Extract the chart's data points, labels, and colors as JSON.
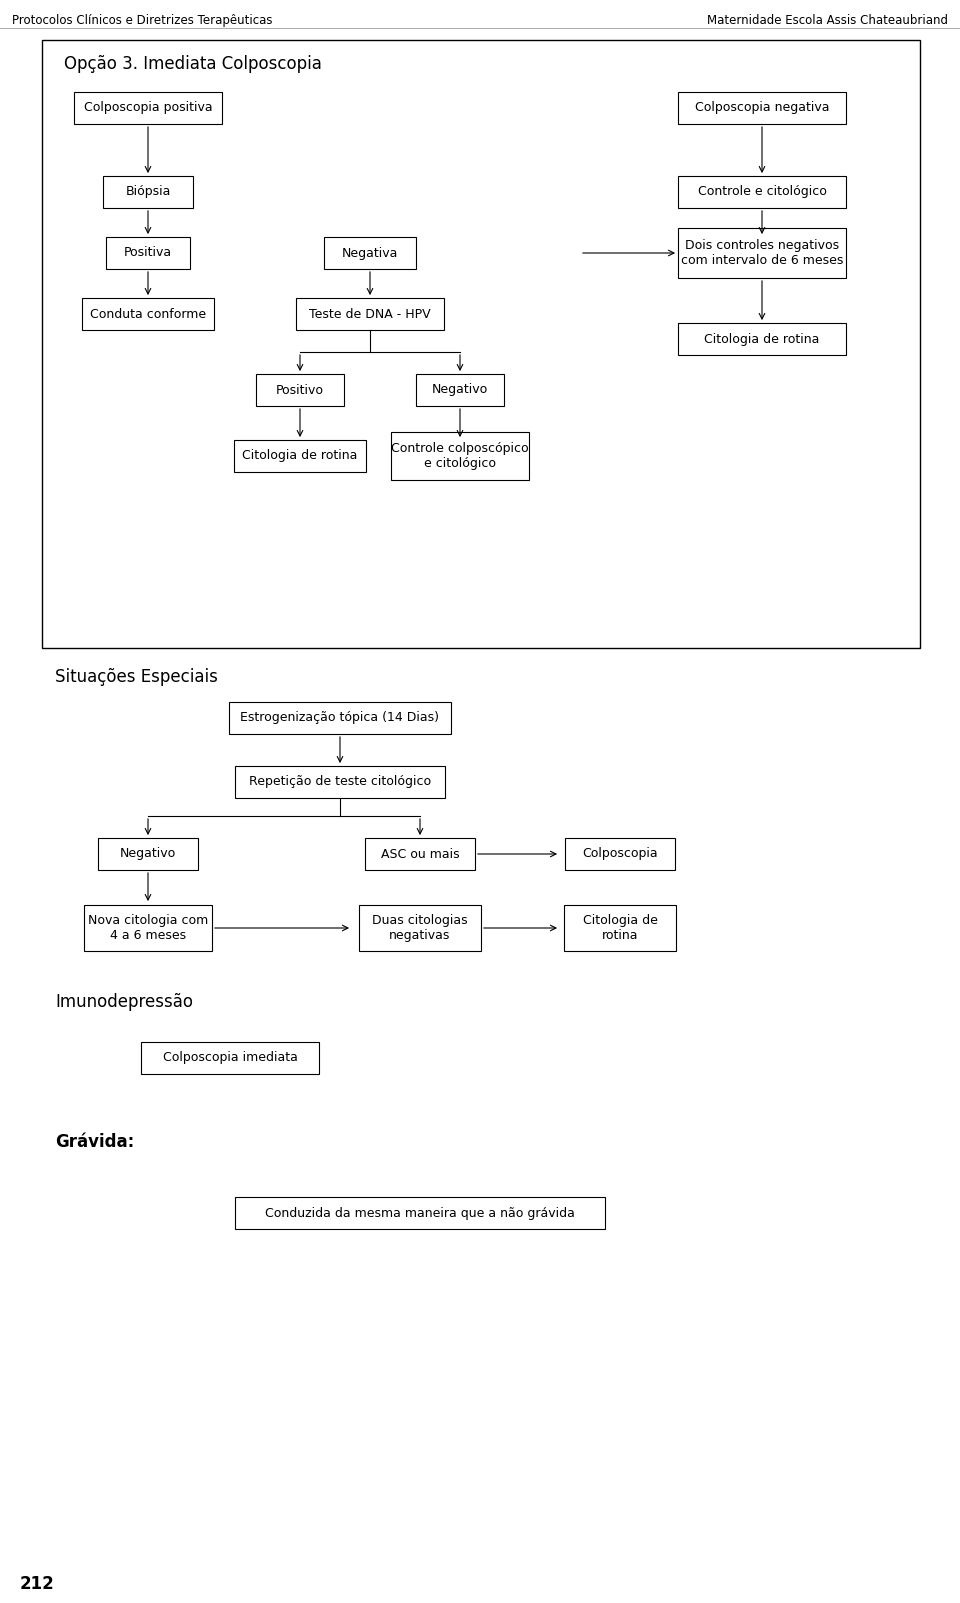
{
  "bg_color": "#ffffff",
  "text_color": "#000000",
  "header_left": "Protocolos Clínicos e Diretrizes Terapêuticas",
  "header_right": "Maternidade Escola Assis Chateaubriand",
  "page_number": "212",
  "section1_title": "Opção 3. Imediata Colposcopia",
  "section2_title": "Situações Especiais",
  "section3_title": "Imunodepressão",
  "section4_title": "Grávida:",
  "font_size_header": 8.5,
  "font_size_title": 12,
  "font_size_section": 12,
  "font_size_box": 9,
  "font_size_page": 12
}
